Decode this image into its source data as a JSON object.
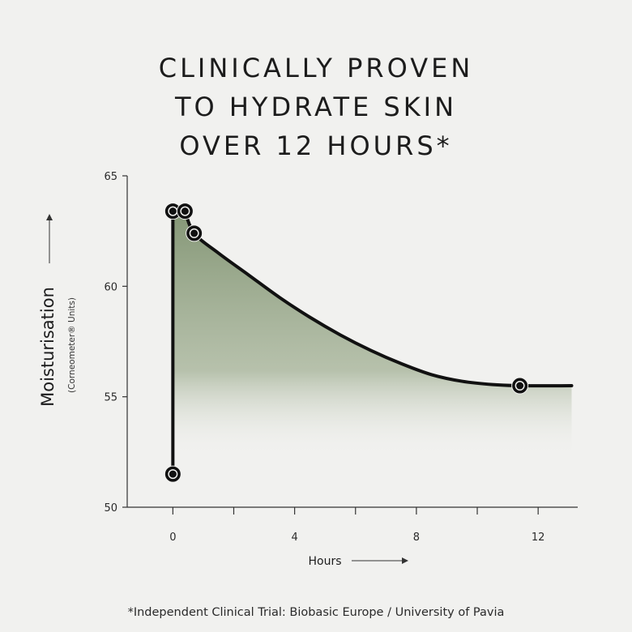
{
  "title_lines": [
    "CLINICALLY PROVEN",
    "TO HYDRATE SKIN",
    "OVER 12 HOURS*"
  ],
  "footnote": "*Independent Clinical Trial: Biobasic Europe / University of Pavia",
  "colors": {
    "fill": "#8b9c7c",
    "line": "#111111",
    "axis": "#333333"
  },
  "chart_data": {
    "type": "area",
    "title": "CLINICALLY PROVEN TO HYDRATE SKIN OVER 12 HOURS*",
    "xlabel": "Hours",
    "ylabel": "Moisturisation",
    "ylabel_sub": "(Corneometer® Units)",
    "xlim": [
      -1.5,
      13.3
    ],
    "ylim": [
      50,
      65
    ],
    "xticks": [
      0,
      4,
      8,
      12
    ],
    "yticks": [
      50,
      55,
      60,
      65
    ],
    "x": [
      0,
      0,
      0.4,
      0.7,
      11.4
    ],
    "y": [
      51.5,
      63.4,
      63.4,
      62.4,
      55.5
    ],
    "curve": {
      "x": [
        0,
        0,
        0.4,
        0.7,
        1.5,
        2.5,
        3.5,
        4.5,
        5.5,
        6.5,
        7.5,
        8.5,
        9.5,
        10.5,
        11.4,
        13.1
      ],
      "y": [
        51.5,
        63.4,
        63.4,
        62.4,
        61.5,
        60.5,
        59.5,
        58.6,
        57.8,
        57.1,
        56.5,
        56.0,
        55.7,
        55.55,
        55.5,
        55.5
      ]
    },
    "grid": false,
    "legend": "none"
  }
}
